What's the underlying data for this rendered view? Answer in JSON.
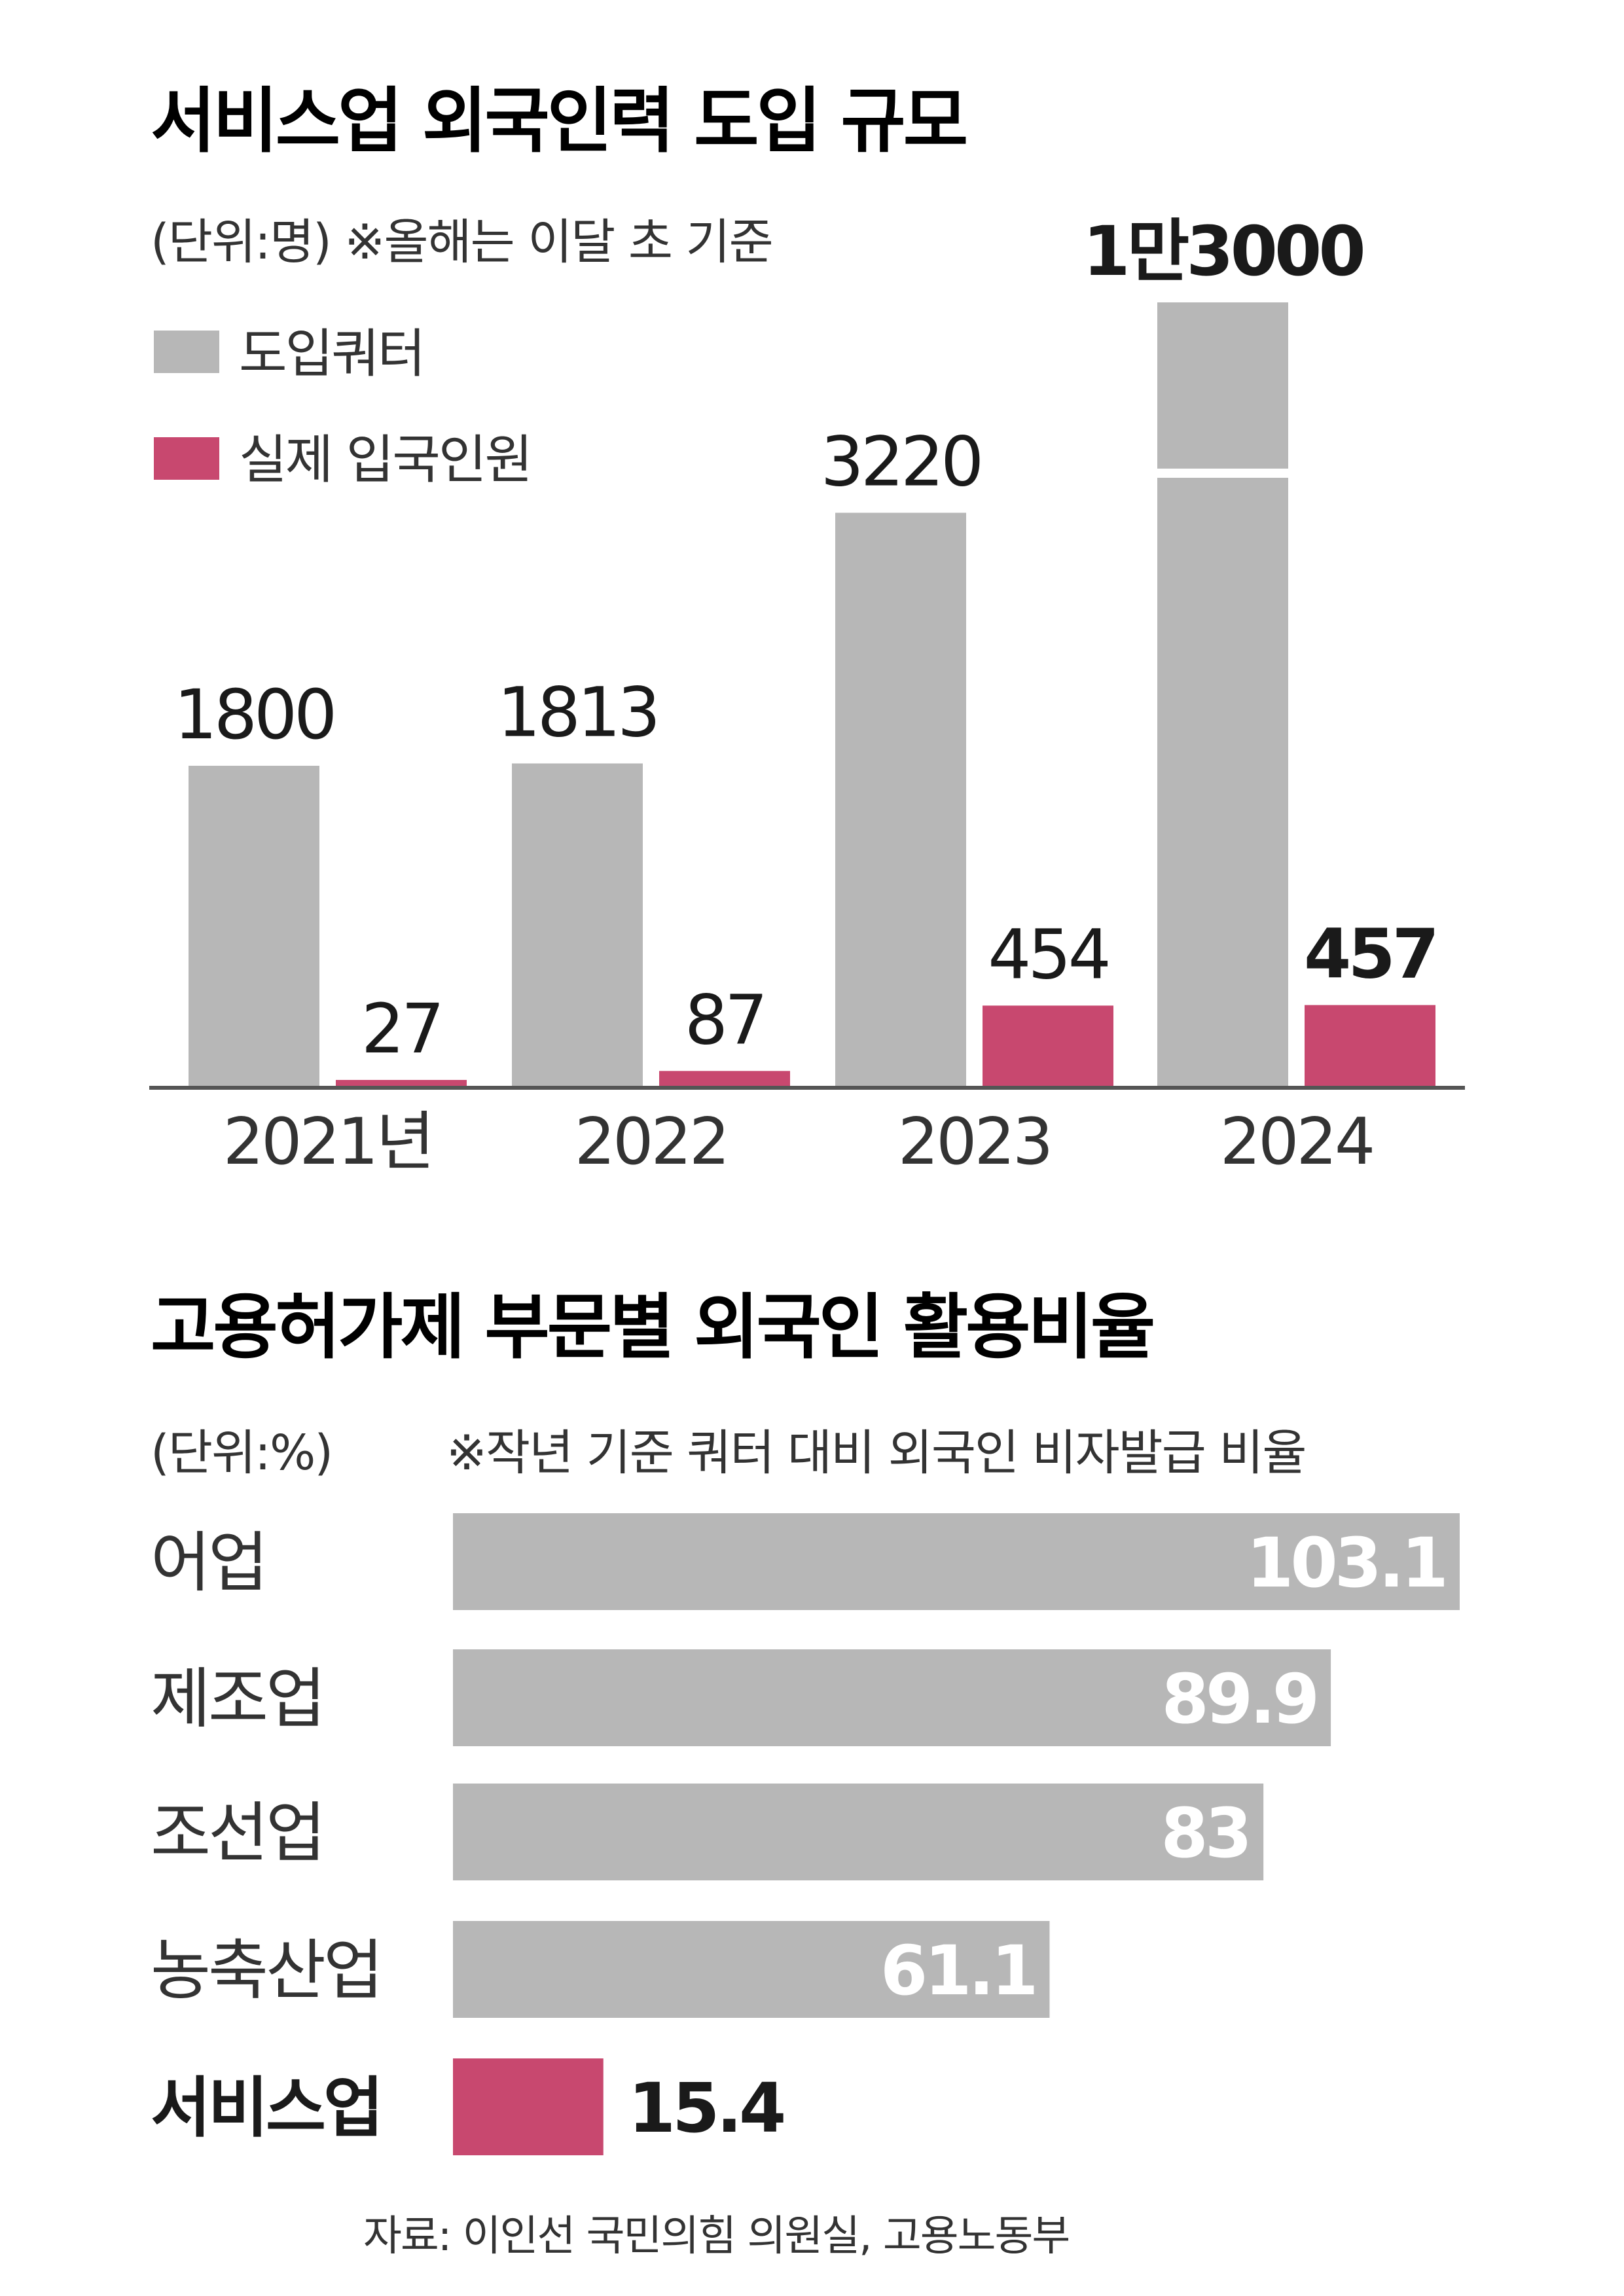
{
  "colors": {
    "gray": "#b7b7b7",
    "accent": "#c8486f",
    "axis": "#555555"
  },
  "charts": {
    "top": {
      "title": "서비스업 외국인력 도입 규모",
      "unit": "(단위:명) ※올해는 이달 초 기준",
      "legend": {
        "quota": "도입쿼터",
        "actual": "실제 입국인원"
      }
    },
    "bottom": {
      "title": "고용허가제 부문별 외국인 활용비율",
      "unit": "(단위:%)",
      "note": "※작년 기준 쿼터 대비 외국인 비자발급 비율"
    }
  },
  "source": "자료: 이인선 국민의힘 의원실, 고용노동부",
  "chart_data": [
    {
      "type": "bar",
      "title": "서비스업 외국인력 도입 규모",
      "unit": "명",
      "categories": [
        "2021",
        "2022",
        "2023",
        "2024"
      ],
      "category_labels": [
        "2021년",
        "2022",
        "2023",
        "2024"
      ],
      "axis_break": "2024 quota bar shown with a break",
      "series": [
        {
          "name": "도입쿼터",
          "color": "#b7b7b7",
          "values": [
            1800,
            1813,
            3220,
            13000
          ],
          "labels": [
            "1800",
            "1813",
            "3220",
            "1만3000"
          ]
        },
        {
          "name": "실제 입국인원",
          "color": "#c8486f",
          "values": [
            27,
            87,
            454,
            457
          ],
          "labels": [
            "27",
            "87",
            "454",
            "457"
          ]
        }
      ]
    },
    {
      "type": "bar",
      "orientation": "horizontal",
      "title": "고용허가제 부문별 외국인 활용비율",
      "unit": "%",
      "categories": [
        "어업",
        "제조업",
        "조선업",
        "농축산업",
        "서비스업"
      ],
      "values": [
        103.1,
        89.9,
        83,
        61.1,
        15.4
      ],
      "labels": [
        "103.1",
        "89.9",
        "83",
        "61.1",
        "15.4"
      ],
      "highlight": "서비스업",
      "colors": [
        "#b7b7b7",
        "#b7b7b7",
        "#b7b7b7",
        "#b7b7b7",
        "#c8486f"
      ]
    }
  ]
}
